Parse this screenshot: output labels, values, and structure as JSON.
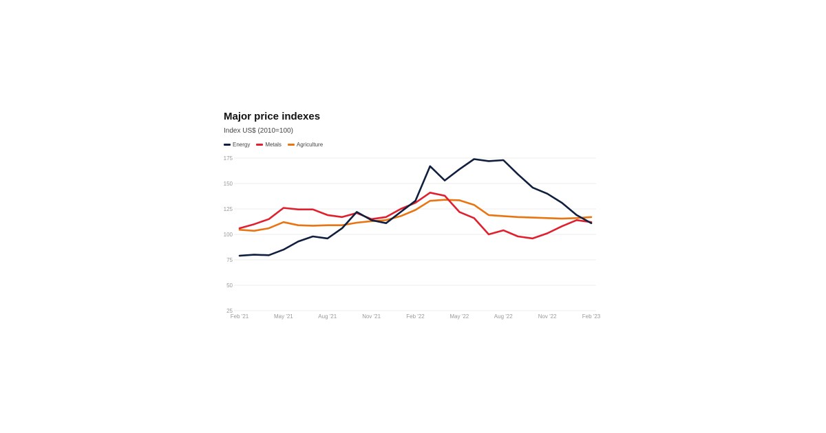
{
  "chart_data": {
    "type": "line",
    "title": "Major price indexes",
    "subtitle": "Index US$ (2010=100)",
    "ylim": [
      25,
      175
    ],
    "yticks": [
      25,
      50,
      75,
      100,
      125,
      150,
      175
    ],
    "grid": true,
    "legend_placement": "top-left",
    "x": [
      "Feb '21",
      "Mar '21",
      "Apr '21",
      "May '21",
      "Jun '21",
      "Jul '21",
      "Aug '21",
      "Sep '21",
      "Oct '21",
      "Nov '21",
      "Dec '21",
      "Jan '22",
      "Feb '22",
      "Mar '22",
      "Apr '22",
      "May '22",
      "Jun '22",
      "Jul '22",
      "Aug '22",
      "Sep '22",
      "Oct '22",
      "Nov '22",
      "Dec '22",
      "Jan '23",
      "Feb '23"
    ],
    "xtick_labels": [
      "Feb '21",
      "May '21",
      "Aug '21",
      "Nov '21",
      "Feb '22",
      "May '22",
      "Aug '22",
      "Nov '22",
      "Feb '23"
    ],
    "series": [
      {
        "name": "Energy",
        "color": "#0f1f3d",
        "values": [
          79,
          80,
          79.5,
          85,
          93,
          98,
          96,
          106,
          122,
          114,
          111,
          122,
          133,
          167,
          153,
          164,
          174,
          172,
          173,
          159,
          146,
          140,
          131,
          119,
          111
        ]
      },
      {
        "name": "Metals",
        "color": "#e0202e",
        "values": [
          106,
          110,
          115,
          126,
          124.5,
          124.5,
          119,
          117,
          121,
          115,
          117,
          125,
          131,
          141,
          138,
          122,
          116,
          100,
          104,
          98,
          96,
          101,
          108,
          114,
          112
        ]
      },
      {
        "name": "Agriculture",
        "color": "#e87511",
        "values": [
          104.5,
          103.5,
          106,
          112,
          109,
          108.5,
          109,
          109,
          111.5,
          113,
          114,
          118,
          124,
          133,
          134,
          133.5,
          129,
          119,
          118,
          117,
          116.5,
          116,
          115.5,
          116,
          117
        ]
      }
    ]
  }
}
